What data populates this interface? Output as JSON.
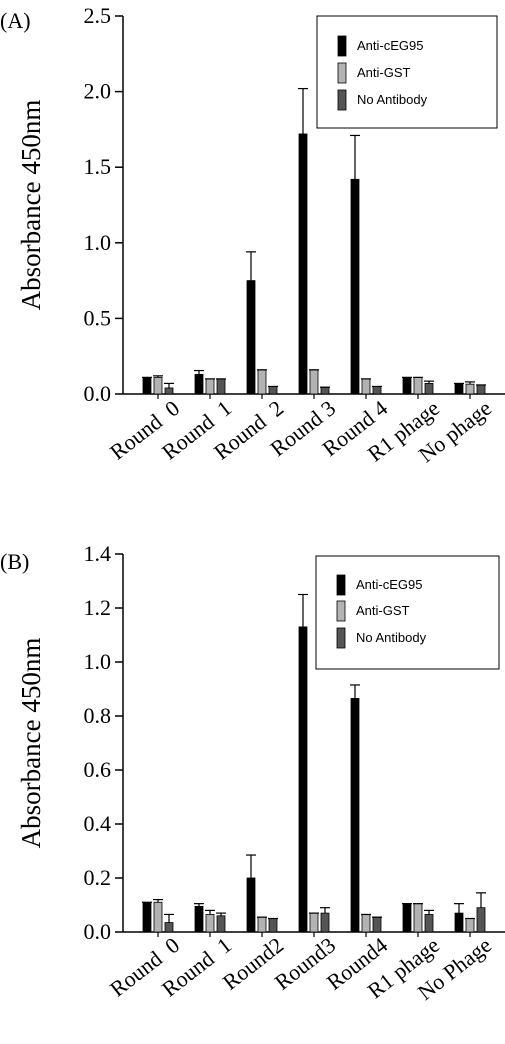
{
  "chart_data": [
    {
      "type": "bar",
      "panel_label": "(A)",
      "ylabel": "Absorbance 450nm",
      "xlabel": "",
      "ylim": [
        0,
        2.5
      ],
      "yticks": [
        0.0,
        0.5,
        1.0,
        1.5,
        2.0,
        2.5
      ],
      "ytick_labels": [
        "0.0",
        "0.5",
        "1.0",
        "1.5",
        "2.0",
        "2.5"
      ],
      "categories": [
        "Round  0",
        "Round  1",
        "Round  2",
        "Round 3",
        "Round 4",
        "R1 phage",
        "No phage"
      ],
      "legend_position": "top-right",
      "series": [
        {
          "name": "Anti-cEG95",
          "color": "#000000",
          "values": [
            0.11,
            0.13,
            0.75,
            1.72,
            1.42,
            0.11,
            0.07
          ],
          "errors": [
            0.0,
            0.025,
            0.19,
            0.3,
            0.29,
            0.0,
            0.0
          ]
        },
        {
          "name": "Anti-GST",
          "color": "#b3b3b3",
          "values": [
            0.11,
            0.1,
            0.16,
            0.16,
            0.1,
            0.11,
            0.065
          ],
          "errors": [
            0.01,
            0.0,
            0.0,
            0.0,
            0.0,
            0.0,
            0.015
          ]
        },
        {
          "name": "No Antibody",
          "color": "#555555",
          "values": [
            0.04,
            0.1,
            0.05,
            0.045,
            0.05,
            0.07,
            0.06
          ],
          "errors": [
            0.03,
            0.0,
            0.0,
            0.0,
            0.0,
            0.015,
            0.0
          ]
        }
      ]
    },
    {
      "type": "bar",
      "panel_label": "(B)",
      "ylabel": "Absorbance 450nm",
      "xlabel": "",
      "ylim": [
        0,
        1.4
      ],
      "yticks": [
        0.0,
        0.2,
        0.4,
        0.6,
        0.8,
        1.0,
        1.2,
        1.4
      ],
      "ytick_labels": [
        "0.0",
        "0.2",
        "0.4",
        "0.6",
        "0.8",
        "1.0",
        "1.2",
        "1.4"
      ],
      "categories": [
        "Round  0",
        "Round  1",
        "Round2",
        "Round3",
        "Round4",
        "R1 phage",
        "No Phage"
      ],
      "legend_position": "top-right",
      "series": [
        {
          "name": "Anti-cEG95",
          "color": "#000000",
          "values": [
            0.11,
            0.095,
            0.2,
            1.13,
            0.865,
            0.105,
            0.07
          ],
          "errors": [
            0.0,
            0.01,
            0.085,
            0.12,
            0.05,
            0.0,
            0.035
          ]
        },
        {
          "name": "Anti-GST",
          "color": "#b3b3b3",
          "values": [
            0.11,
            0.065,
            0.055,
            0.07,
            0.065,
            0.105,
            0.05
          ],
          "errors": [
            0.01,
            0.015,
            0.0,
            0.0,
            0.0,
            0.0,
            0.0
          ]
        },
        {
          "name": "No Antibody",
          "color": "#555555",
          "values": [
            0.035,
            0.06,
            0.05,
            0.07,
            0.055,
            0.065,
            0.09
          ],
          "errors": [
            0.03,
            0.01,
            0.0,
            0.02,
            0.0,
            0.015,
            0.055
          ]
        }
      ]
    }
  ]
}
